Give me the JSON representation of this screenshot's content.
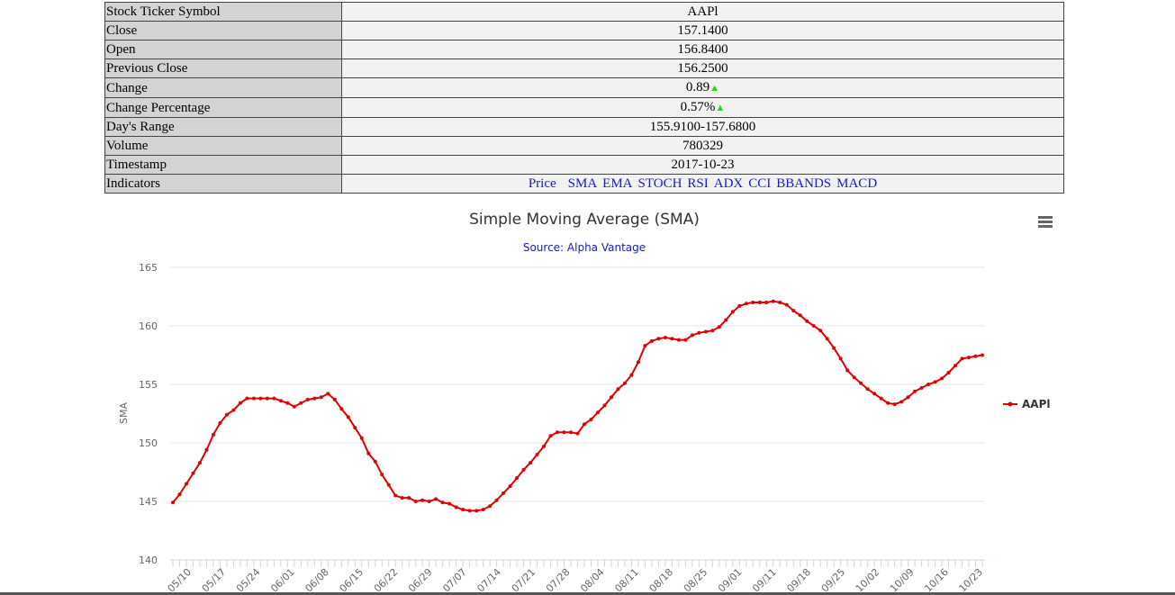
{
  "quote": {
    "rows": [
      {
        "label": "Stock Ticker Symbol",
        "value": "AAPl"
      },
      {
        "label": "Close",
        "value": "157.1400"
      },
      {
        "label": "Open",
        "value": "156.8400"
      },
      {
        "label": "Previous Close",
        "value": "156.2500"
      },
      {
        "label": "Change",
        "value": "0.89"
      },
      {
        "label": "Change Percentage",
        "value": "0.57%"
      },
      {
        "label": "Day's Range",
        "value": "155.9100-157.6800"
      },
      {
        "label": "Volume",
        "value": "780329"
      },
      {
        "label": "Timestamp",
        "value": "2017-10-23"
      }
    ],
    "indicators_label": "Indicators",
    "indicators": [
      "Price",
      "SMA",
      "EMA",
      "STOCH",
      "RSI",
      "ADX",
      "CCI",
      "BBANDS",
      "MACD"
    ],
    "up_arrow": "▲",
    "colors": {
      "label_bg": "#d3d3d3",
      "value_bg": "#f2f2f2",
      "link": "#1a1acc",
      "arrow": "#22dd22"
    }
  },
  "chart_data": {
    "type": "line",
    "title": "Simple Moving Average (SMA)",
    "subtitle": "Source: Alpha Vantage",
    "ylabel": "SMA",
    "ylim": [
      140,
      165
    ],
    "yticks": [
      140,
      145,
      150,
      155,
      160,
      165
    ],
    "grid": true,
    "legend_position": "right",
    "x_tick_labels": [
      "05/10",
      "05/17",
      "05/24",
      "06/01",
      "06/08",
      "06/15",
      "06/22",
      "06/29",
      "07/07",
      "07/14",
      "07/21",
      "07/28",
      "08/04",
      "08/11",
      "08/18",
      "08/25",
      "09/01",
      "09/11",
      "09/18",
      "09/25",
      "10/02",
      "10/09",
      "10/16",
      "10/23"
    ],
    "series": [
      {
        "name": "AAPl",
        "color": "#e00000",
        "values": [
          144.9,
          145.6,
          146.5,
          147.4,
          148.3,
          149.4,
          150.7,
          151.7,
          152.4,
          152.8,
          153.4,
          153.8,
          153.8,
          153.8,
          153.8,
          153.8,
          153.6,
          153.4,
          153.1,
          153.4,
          153.7,
          153.8,
          153.9,
          154.2,
          153.7,
          152.9,
          152.2,
          151.3,
          150.4,
          149.1,
          148.4,
          147.3,
          146.4,
          145.5,
          145.3,
          145.3,
          145.0,
          145.1,
          145.0,
          145.2,
          144.9,
          144.8,
          144.5,
          144.3,
          144.2,
          144.2,
          144.3,
          144.6,
          145.1,
          145.7,
          146.3,
          147.0,
          147.7,
          148.3,
          149.0,
          149.7,
          150.6,
          150.9,
          150.9,
          150.9,
          150.8,
          151.6,
          152.0,
          152.6,
          153.2,
          153.9,
          154.6,
          155.1,
          155.8,
          156.9,
          158.3,
          158.7,
          158.9,
          159.0,
          158.9,
          158.8,
          158.8,
          159.2,
          159.4,
          159.5,
          159.6,
          159.9,
          160.5,
          161.2,
          161.7,
          161.9,
          162.0,
          162.0,
          162.0,
          162.1,
          162.0,
          161.8,
          161.3,
          160.9,
          160.4,
          160.0,
          159.6,
          158.9,
          158.1,
          157.2,
          156.2,
          155.6,
          155.1,
          154.6,
          154.2,
          153.8,
          153.4,
          153.3,
          153.5,
          153.9,
          154.4,
          154.7,
          155.0,
          155.2,
          155.5,
          156.0,
          156.6,
          157.2,
          157.3,
          157.4,
          157.5
        ]
      }
    ]
  }
}
